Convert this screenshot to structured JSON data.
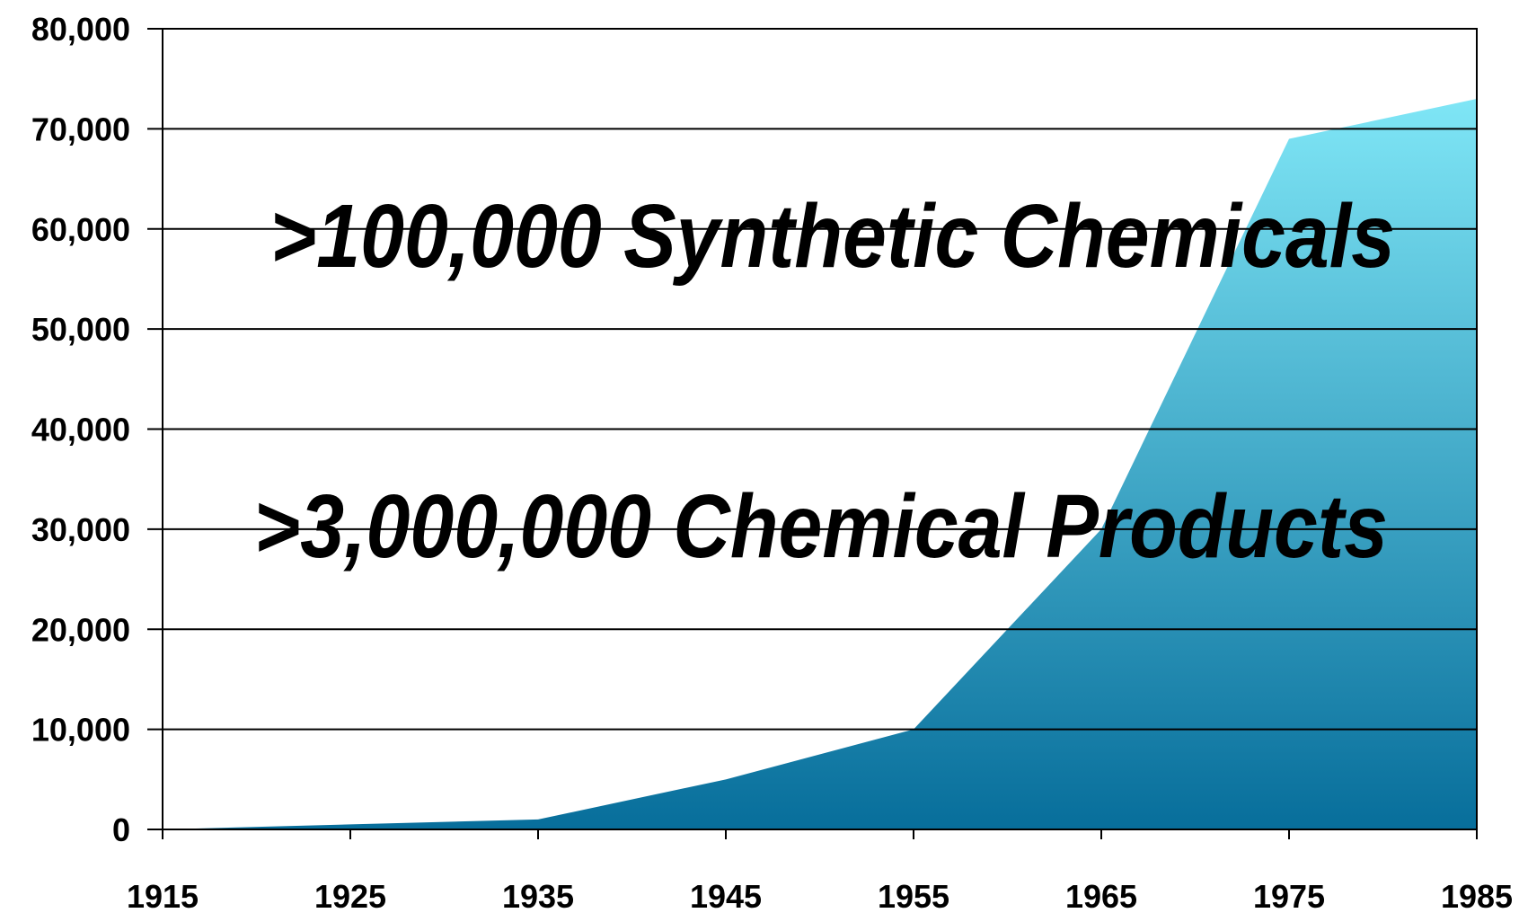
{
  "chart_data": {
    "type": "area",
    "x": [
      1915,
      1925,
      1935,
      1945,
      1955,
      1965,
      1975,
      1985
    ],
    "values": [
      0,
      500,
      1000,
      5000,
      10000,
      30000,
      69000,
      73000
    ],
    "xlim": [
      1915,
      1985
    ],
    "xticks": [
      1915,
      1925,
      1935,
      1945,
      1955,
      1965,
      1975,
      1985
    ],
    "ylim": [
      0,
      80000
    ],
    "yticks": [
      0,
      {
        "value": 10000,
        "label": "10,000"
      },
      {
        "value": 20000,
        "label": "20,000"
      },
      {
        "value": 30000,
        "label": "30,000"
      },
      {
        "value": 40000,
        "label": "40,000"
      },
      {
        "value": 50000,
        "label": "50,000"
      },
      {
        "value": 60000,
        "label": "60,000"
      },
      {
        "value": 70000,
        "label": "70,000"
      },
      {
        "value": 80000,
        "label": "80,000"
      }
    ],
    "grid": true,
    "color_top": "#7fe6f6",
    "color_bottom": "#076e9b",
    "annotations": [
      ">100,000 Synthetic Chemicals",
      ">3,000,000 Chemical Products"
    ]
  }
}
